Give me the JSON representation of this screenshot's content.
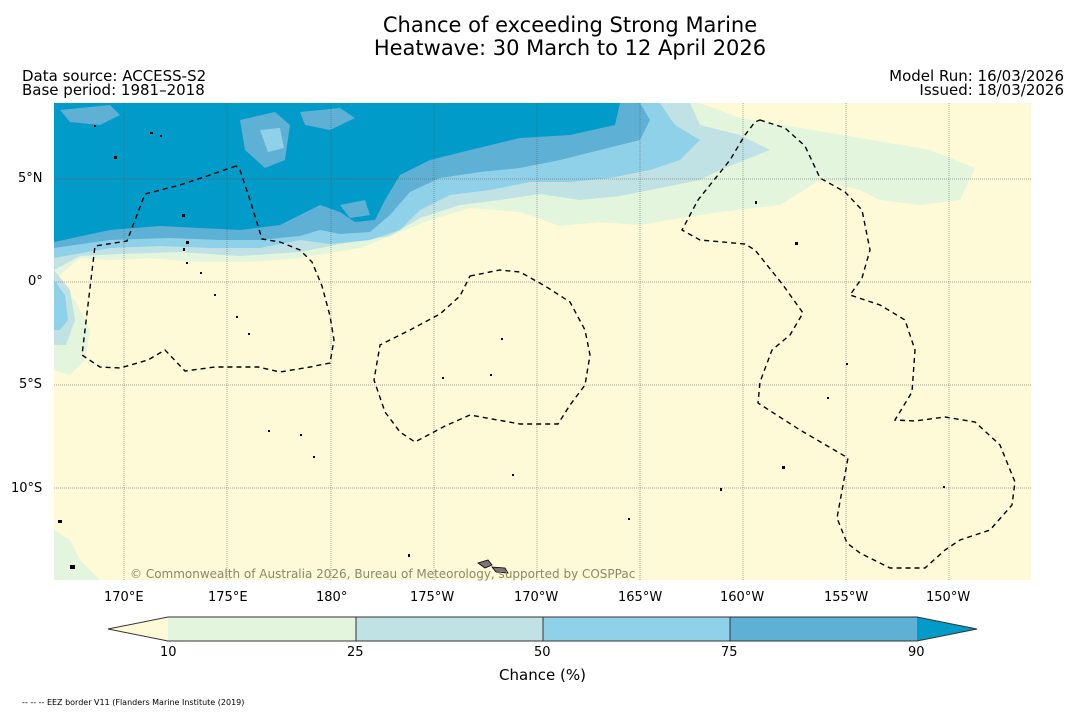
{
  "title": {
    "line1": "Chance of exceeding Strong Marine",
    "line2": "Heatwave: 30 March to 12 April 2026"
  },
  "meta": {
    "data_source": "Data source: ACCESS-S2",
    "base_period": "Base period: 1981–2018",
    "model_run": "Model Run: 16/03/2026",
    "issued": "Issued: 18/03/2026"
  },
  "map": {
    "lon_ticks": [
      "170°E",
      "175°E",
      "180°",
      "175°W",
      "170°W",
      "165°W",
      "160°W",
      "155°W",
      "150°W"
    ],
    "lat_ticks": [
      "5°N",
      "0°",
      "5°S",
      "10°S"
    ],
    "credit": "© Commonwealth of Australia 2026, Bureau of Meteorology, supported by COSPPac",
    "colors": {
      "below10": "#fef9d7",
      "c10_25": "#e3f5dc",
      "c25_50": "#c1e2e4",
      "c50_75": "#8fd1e9",
      "c75_90": "#5eb1d5",
      "c90plus": "#009bc9",
      "grid": "#555555",
      "eez": "#000000",
      "land": "#777777"
    }
  },
  "colorbar": {
    "labels": [
      "10",
      "25",
      "50",
      "75",
      "90"
    ],
    "title": "Chance (%)",
    "colors": [
      "#fef9d7",
      "#e3f5dc",
      "#c1e2e4",
      "#8fd1e9",
      "#5eb1d5",
      "#009bc9"
    ]
  },
  "footnote": "-- -- -- EEZ border V11 (Flanders Marine Institute (2019)"
}
